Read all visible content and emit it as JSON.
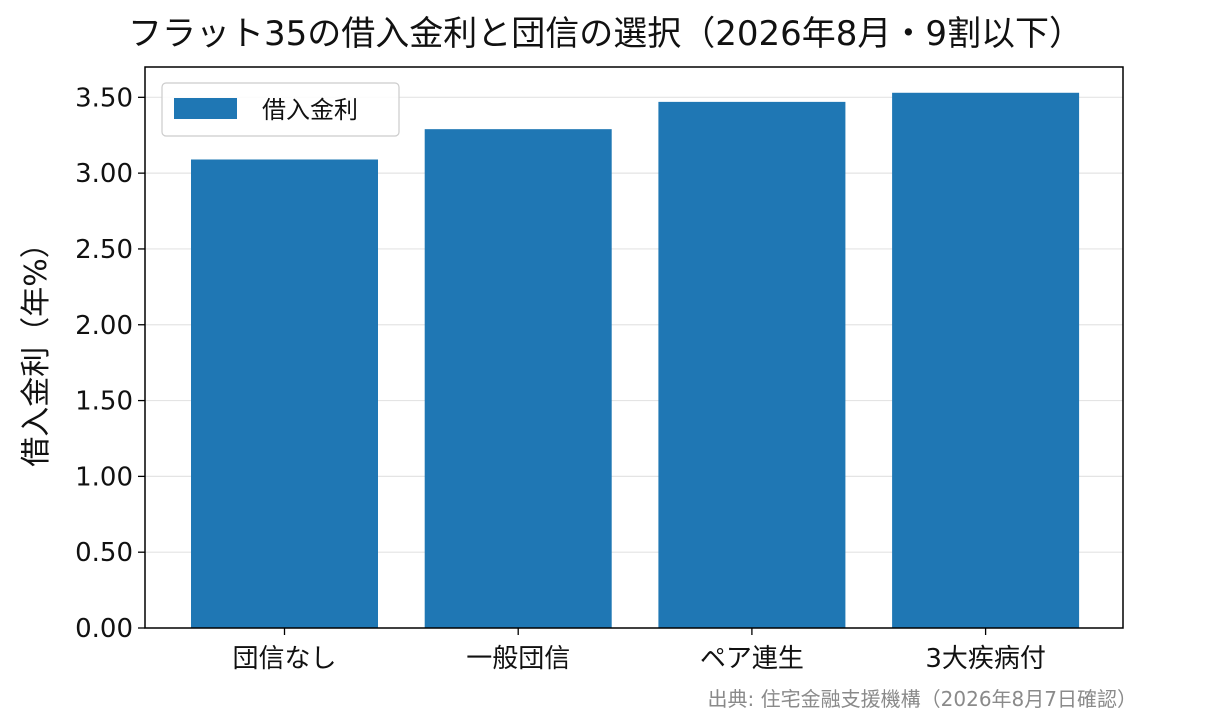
{
  "chart_data": {
    "type": "bar",
    "title": "フラット35の借入金利と団信の選択（2026年8月・9割以下）",
    "categories": [
      "団信なし",
      "一般団信",
      "ペア連生",
      "3大疾病付"
    ],
    "series": [
      {
        "name": "借入金利",
        "values": [
          3.09,
          3.29,
          3.47,
          3.53
        ],
        "color": "#1f77b4"
      }
    ],
    "xlabel": "",
    "ylabel": "借入金利（年%）",
    "ylim": [
      0,
      3.7
    ],
    "yticks": [
      "0.00",
      "0.50",
      "1.00",
      "1.50",
      "2.00",
      "2.50",
      "3.00",
      "3.50"
    ],
    "grid": "horizontal",
    "legend_position": "top-left",
    "source": "出典: 住宅金融支援機構（2026年8月7日確認）"
  }
}
